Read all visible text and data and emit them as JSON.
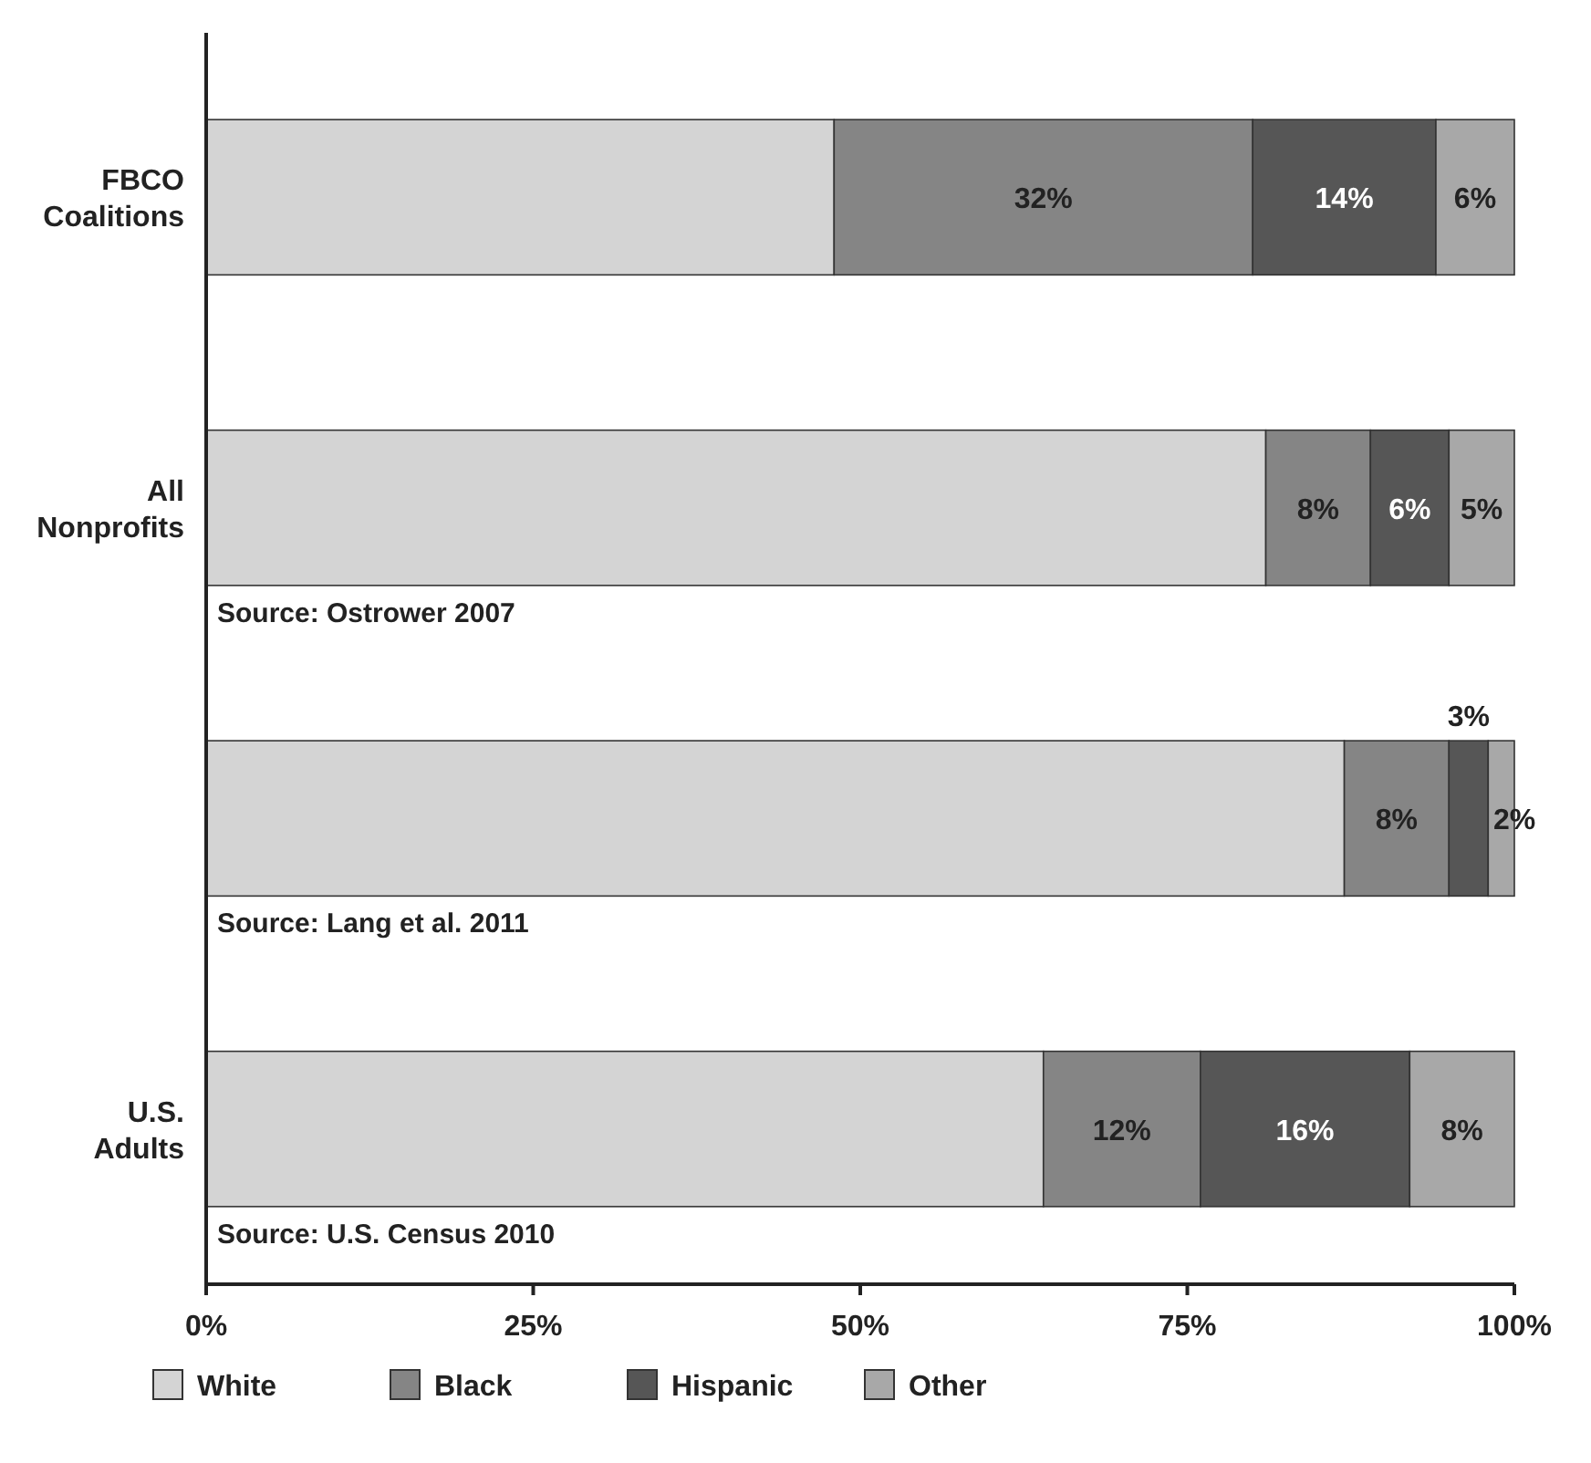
{
  "chart_data": {
    "type": "bar",
    "orientation": "horizontal",
    "stacked": true,
    "categories": [
      "FBCO Coalitions",
      "All Nonprofits",
      null,
      "U.S. Adults"
    ],
    "series": [
      {
        "name": "White",
        "color": "#d4d4d4",
        "values": [
          48,
          81,
          87,
          64
        ],
        "value_labels": [
          null,
          null,
          null,
          null
        ]
      },
      {
        "name": "Black",
        "color": "#858585",
        "values": [
          32,
          8,
          8,
          12
        ],
        "value_labels": [
          "32%",
          "8%",
          "8%",
          "12%"
        ]
      },
      {
        "name": "Hispanic",
        "color": "#565656",
        "values": [
          14,
          6,
          3,
          16
        ],
        "value_labels": [
          "14%",
          "6%",
          "3%",
          "16%"
        ]
      },
      {
        "name": "Other",
        "color": "#a8a8a8",
        "values": [
          6,
          5,
          2,
          8
        ],
        "value_labels": [
          "6%",
          "5%",
          "2%",
          "8%"
        ]
      }
    ],
    "xlim": [
      0,
      100
    ],
    "xticks": [
      {
        "value": 0,
        "label": "0%"
      },
      {
        "value": 25,
        "label": "25%"
      },
      {
        "value": 50,
        "label": "50%"
      },
      {
        "value": 75,
        "label": "75%"
      },
      {
        "value": 100,
        "label": "100%"
      }
    ],
    "legend": "bottom",
    "annotations": [
      "Source: Ostrower 2007",
      "Source: Lang et al. 2011",
      "Source: U.S. Census 2010"
    ]
  }
}
